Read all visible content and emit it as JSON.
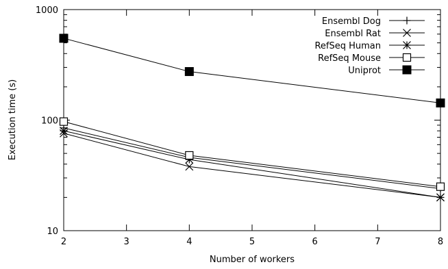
{
  "chart_data": {
    "type": "line",
    "title": "",
    "xlabel": "Number of workers",
    "ylabel": "Execution time (s)",
    "xlim": [
      2,
      8
    ],
    "ylim": [
      10,
      1000
    ],
    "yscale": "log",
    "xticks": [
      "2",
      "3",
      "4",
      "5",
      "6",
      "7",
      "8"
    ],
    "yticks": [
      "10",
      "100",
      "1000"
    ],
    "legend_position": "top-right",
    "x": [
      2,
      4,
      8
    ],
    "series": [
      {
        "name": "Ensembl Dog",
        "marker": "plus",
        "values": [
          85,
          46,
          24
        ]
      },
      {
        "name": "Ensembl Rat",
        "marker": "cross",
        "values": [
          76,
          38,
          20
        ]
      },
      {
        "name": "RefSeq Human",
        "marker": "star",
        "values": [
          80,
          44,
          20
        ]
      },
      {
        "name": "RefSeq Mouse",
        "marker": "open-square",
        "values": [
          97,
          48,
          25
        ]
      },
      {
        "name": "Uniprot",
        "marker": "filled-square",
        "values": [
          550,
          275,
          143
        ]
      }
    ]
  }
}
